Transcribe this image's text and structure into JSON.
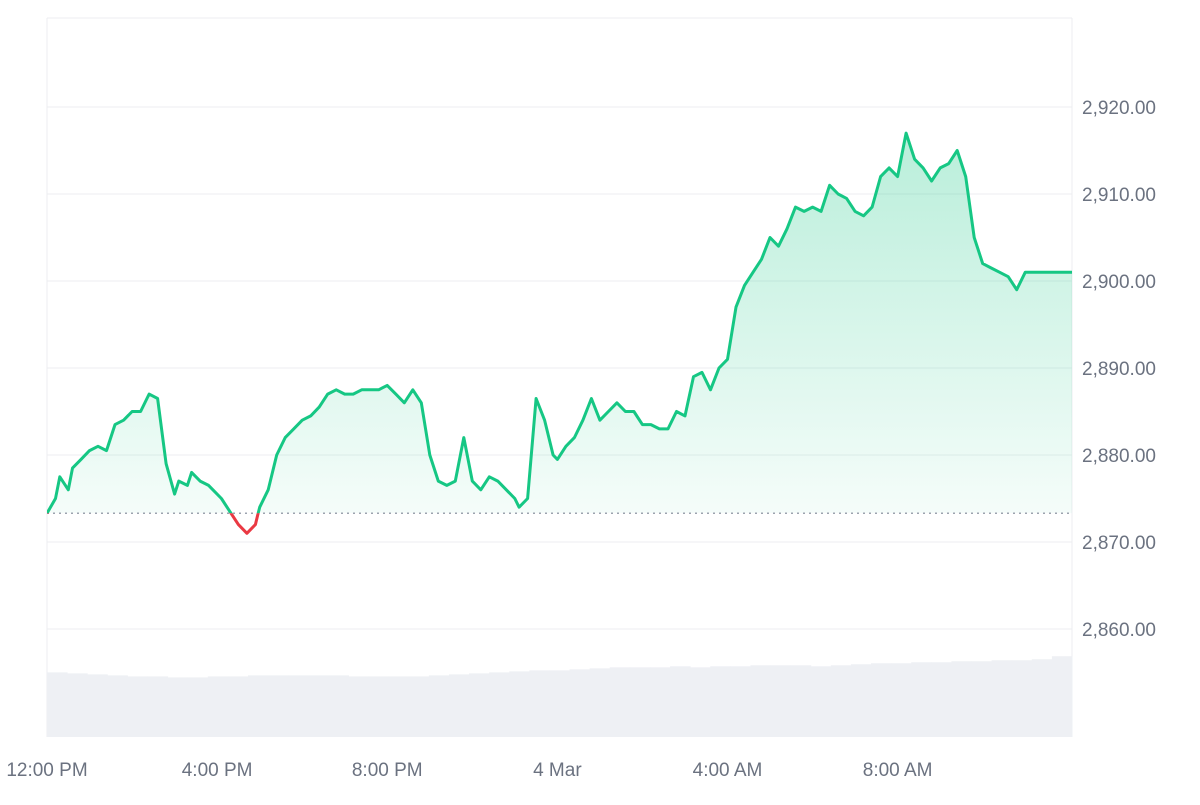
{
  "chart_data": {
    "type": "area",
    "title": "",
    "xlabel": "",
    "ylabel": "",
    "baseline_value": 2873.3,
    "ylim": [
      2850,
      2930
    ],
    "yticks": [
      2860,
      2870,
      2880,
      2890,
      2900,
      2910,
      2920
    ],
    "ytick_labels": [
      "2,860.00",
      "2,870.00",
      "2,880.00",
      "2,890.00",
      "2,900.00",
      "2,910.00",
      "2,920.00"
    ],
    "xlim": [
      0,
      24.1
    ],
    "xticks": [
      0,
      4,
      8,
      12,
      16,
      20
    ],
    "xtick_labels": [
      "12:00 PM",
      "4:00 PM",
      "8:00 PM",
      "4 Mar",
      "4:00 AM",
      "8:00 AM"
    ],
    "colors": {
      "up": "#16c784",
      "down": "#ea3943",
      "volume": "#eef0f4",
      "grid": "#eceef1",
      "baseline": "#9ca3af"
    },
    "series": [
      {
        "x": [
          0,
          0.2,
          0.3,
          0.5,
          0.6,
          0.8,
          1.0,
          1.2,
          1.4,
          1.6,
          1.8,
          2.0,
          2.2,
          2.4,
          2.6,
          2.8,
          3.0,
          3.1,
          3.3,
          3.4,
          3.6,
          3.8,
          3.9,
          4.1,
          4.3,
          4.5,
          4.7,
          4.9,
          4.95,
          5.0,
          5.2,
          5.4,
          5.6,
          5.8,
          6.0,
          6.2,
          6.4,
          6.6,
          6.8,
          7.0,
          7.2,
          7.4,
          7.6,
          7.8,
          8.0,
          8.2,
          8.4,
          8.6,
          8.8,
          9.0,
          9.2,
          9.4,
          9.6,
          9.8,
          10.0,
          10.2,
          10.4,
          10.6,
          10.8,
          11.0,
          11.1,
          11.3,
          11.5,
          11.7,
          11.9,
          12.0,
          12.2,
          12.4,
          12.6,
          12.8,
          13.0,
          13.2,
          13.4,
          13.6,
          13.8,
          14.0,
          14.2,
          14.4,
          14.6,
          14.8,
          15.0,
          15.2,
          15.4,
          15.6,
          15.8,
          16.0,
          16.2,
          16.4,
          16.6,
          16.8,
          17.0,
          17.2,
          17.4,
          17.6,
          17.8,
          18.0,
          18.2,
          18.4,
          18.6,
          18.8,
          19.0,
          19.2,
          19.4,
          19.6,
          19.8,
          20.0,
          20.2,
          20.4,
          20.6,
          20.8,
          21.0,
          21.2,
          21.4,
          21.6,
          21.8,
          22.0,
          22.2,
          22.4,
          22.6,
          22.8,
          23.0,
          23.2,
          23.4,
          23.6,
          23.8,
          24.0,
          24.1
        ],
        "y": [
          2873.3,
          2875.0,
          2877.5,
          2876.0,
          2878.5,
          2879.5,
          2880.5,
          2881.0,
          2880.5,
          2883.5,
          2884.0,
          2885.0,
          2885.0,
          2887.0,
          2886.5,
          2879.0,
          2875.5,
          2877.0,
          2876.5,
          2878.0,
          2877.0,
          2876.5,
          2876.0,
          2875.0,
          2873.5,
          2872.0,
          2871.0,
          2872.0,
          2873.0,
          2874.0,
          2876.0,
          2880.0,
          2882.0,
          2883.0,
          2884.0,
          2884.5,
          2885.5,
          2887.0,
          2887.5,
          2887.0,
          2887.0,
          2887.5,
          2887.5,
          2887.5,
          2888.0,
          2887.0,
          2886.0,
          2887.5,
          2886.0,
          2880.0,
          2877.0,
          2876.5,
          2877.0,
          2882.0,
          2877.0,
          2876.0,
          2877.5,
          2877.0,
          2876.0,
          2875.0,
          2874.0,
          2875.0,
          2886.5,
          2884.0,
          2880.0,
          2879.5,
          2881.0,
          2882.0,
          2884.0,
          2886.5,
          2884.0,
          2885.0,
          2886.0,
          2885.0,
          2885.0,
          2883.5,
          2883.5,
          2883.0,
          2883.0,
          2885.0,
          2884.5,
          2889.0,
          2889.5,
          2887.5,
          2890.0,
          2891.0,
          2897.0,
          2899.5,
          2901.0,
          2902.5,
          2905.0,
          2904.0,
          2906.0,
          2908.5,
          2908.0,
          2908.5,
          2908.0,
          2911.0,
          2910.0,
          2909.5,
          2908.0,
          2907.5,
          2908.5,
          2912.0,
          2913.0,
          2912.0,
          2917.0,
          2914.0,
          2913.0,
          2911.5,
          2913.0,
          2913.5,
          2915.0,
          2912.0,
          2905.0,
          2902.0,
          2901.5,
          2901.0,
          2900.5,
          2899.0,
          2901.0,
          2901.0,
          2901.0,
          2901.0,
          2901.0,
          2901.0,
          2901.0
        ]
      }
    ],
    "volume": [
      0.64,
      0.63,
      0.62,
      0.61,
      0.6,
      0.6,
      0.59,
      0.59,
      0.6,
      0.6,
      0.61,
      0.61,
      0.61,
      0.61,
      0.61,
      0.6,
      0.6,
      0.6,
      0.6,
      0.61,
      0.62,
      0.63,
      0.64,
      0.65,
      0.66,
      0.66,
      0.67,
      0.68,
      0.69,
      0.69,
      0.69,
      0.7,
      0.69,
      0.7,
      0.7,
      0.71,
      0.71,
      0.71,
      0.7,
      0.71,
      0.72,
      0.73,
      0.73,
      0.74,
      0.74,
      0.75,
      0.75,
      0.76,
      0.76,
      0.77,
      0.8
    ]
  }
}
